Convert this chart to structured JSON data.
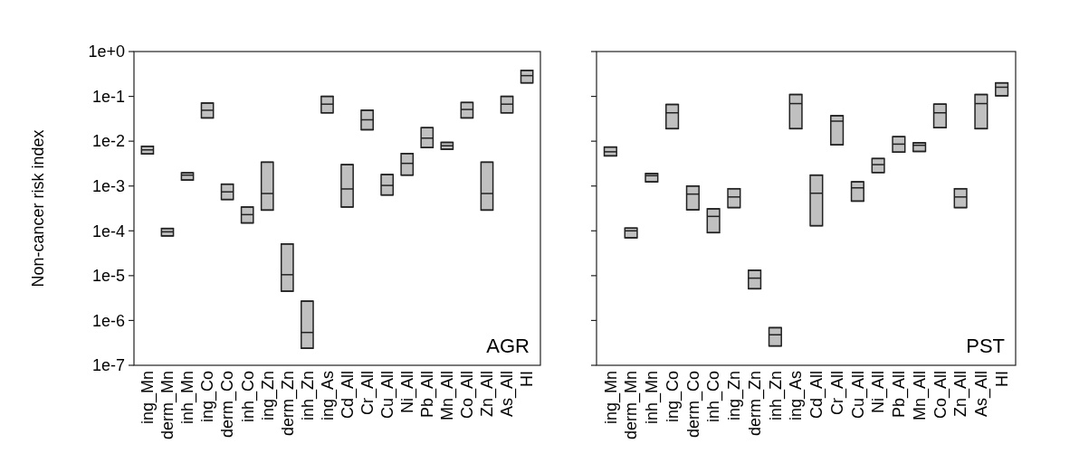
{
  "chart_data": [
    {
      "type": "box",
      "ylabel": "Non-cancer risk index",
      "log": true,
      "ylim": [
        1e-07,
        1
      ],
      "yticks": [
        {
          "value": 1,
          "label": "1e+0"
        },
        {
          "value": 0.1,
          "label": "1e-1"
        },
        {
          "value": 0.01,
          "label": "1e-2"
        },
        {
          "value": 0.001,
          "label": "1e-3"
        },
        {
          "value": 0.0001,
          "label": "1e-4"
        },
        {
          "value": 1e-05,
          "label": "1e-5"
        },
        {
          "value": 1e-06,
          "label": "1e-6"
        },
        {
          "value": 1e-07,
          "label": "1e-7"
        }
      ],
      "color": "#c0c0c0",
      "annotations": [
        "AGR"
      ],
      "categories": [
        "ing_Mn",
        "derm_Mn",
        "inh_Mn",
        "ing_Co",
        "derm_Co",
        "inh_Co",
        "ing_Zn",
        "derm_Zn",
        "inh_Zn",
        "ing_As",
        "Cd_All",
        "Cr_All",
        "Cu_All",
        "Ni_All",
        "Pb_All",
        "Mn_All",
        "Co_All",
        "Zn_All",
        "As_All",
        "HI"
      ],
      "boxes": [
        {
          "low": 0.0052,
          "q1": 0.0052,
          "median": 0.0064,
          "q3": 0.0077,
          "high": 0.0077
        },
        {
          "low": 7.7e-05,
          "q1": 7.7e-05,
          "median": 9.5e-05,
          "q3": 0.000113,
          "high": 0.000113
        },
        {
          "low": 0.00136,
          "q1": 0.00136,
          "median": 0.00175,
          "q3": 0.00197,
          "high": 0.00197
        },
        {
          "low": 0.033,
          "q1": 0.033,
          "median": 0.049,
          "q3": 0.071,
          "high": 0.071
        },
        {
          "low": 0.0005,
          "q1": 0.0005,
          "median": 0.00074,
          "q3": 0.0011,
          "high": 0.0011
        },
        {
          "low": 0.00015,
          "q1": 0.00015,
          "median": 0.00023,
          "q3": 0.00034,
          "high": 0.00034
        },
        {
          "low": 0.00029,
          "q1": 0.00029,
          "median": 0.00068,
          "q3": 0.0034,
          "high": 0.0034
        },
        {
          "low": 4.5e-06,
          "q1": 4.5e-06,
          "median": 1.05e-05,
          "q3": 5.1e-05,
          "high": 5.1e-05
        },
        {
          "low": 2.4e-07,
          "q1": 2.4e-07,
          "median": 5.4e-07,
          "q3": 2.7e-06,
          "high": 2.7e-06
        },
        {
          "low": 0.043,
          "q1": 0.043,
          "median": 0.067,
          "q3": 0.1,
          "high": 0.1
        },
        {
          "low": 0.00034,
          "q1": 0.00034,
          "median": 0.00086,
          "q3": 0.003,
          "high": 0.003
        },
        {
          "low": 0.018,
          "q1": 0.018,
          "median": 0.03,
          "q3": 0.049,
          "high": 0.049
        },
        {
          "low": 0.00063,
          "q1": 0.00063,
          "median": 0.00103,
          "q3": 0.0018,
          "high": 0.0018
        },
        {
          "low": 0.00175,
          "q1": 0.00175,
          "median": 0.0032,
          "q3": 0.0053,
          "high": 0.0053
        },
        {
          "low": 0.0072,
          "q1": 0.0072,
          "median": 0.0117,
          "q3": 0.02,
          "high": 0.02
        },
        {
          "low": 0.0066,
          "q1": 0.0066,
          "median": 0.0079,
          "q3": 0.0094,
          "high": 0.0094
        },
        {
          "low": 0.033,
          "q1": 0.033,
          "median": 0.051,
          "q3": 0.073,
          "high": 0.073
        },
        {
          "low": 0.00029,
          "q1": 0.00029,
          "median": 0.00068,
          "q3": 0.0034,
          "high": 0.0034
        },
        {
          "low": 0.043,
          "q1": 0.043,
          "median": 0.067,
          "q3": 0.1,
          "high": 0.1
        },
        {
          "low": 0.2,
          "q1": 0.2,
          "median": 0.29,
          "q3": 0.38,
          "high": 0.38
        }
      ]
    },
    {
      "type": "box",
      "log": true,
      "tick_labels": "x",
      "ylim": [
        1e-07,
        1
      ],
      "yticks": [
        {
          "value": 1,
          "label": null
        },
        {
          "value": 0.1,
          "label": null
        },
        {
          "value": 0.01,
          "label": null
        },
        {
          "value": 0.001,
          "label": null
        },
        {
          "value": 0.0001,
          "label": null
        },
        {
          "value": 1e-05,
          "label": null
        },
        {
          "value": 1e-06,
          "label": null
        },
        {
          "value": 1e-07,
          "label": null
        }
      ],
      "color": "#c0c0c0",
      "annotations": [
        "PST"
      ],
      "categories": [
        "ing_Mn",
        "derm_Mn",
        "inh_Mn",
        "ing_Co",
        "derm_Co",
        "inh_Co",
        "ing_Zn",
        "derm_Zn",
        "inh_Zn",
        "ing_As",
        "Cd_All",
        "Cr_All",
        "Cu_All",
        "Ni_All",
        "Pb_All",
        "Mn_All",
        "Co_All",
        "Zn_All",
        "As_All",
        "HI"
      ],
      "boxes": [
        {
          "low": 0.0047,
          "q1": 0.0047,
          "median": 0.0058,
          "q3": 0.0074,
          "high": 0.0074
        },
        {
          "low": 7e-05,
          "q1": 7e-05,
          "median": 0.0001,
          "q3": 0.000115,
          "high": 0.000115
        },
        {
          "low": 0.00124,
          "q1": 0.00124,
          "median": 0.0017,
          "q3": 0.0019,
          "high": 0.0019
        },
        {
          "low": 0.019,
          "q1": 0.019,
          "median": 0.043,
          "q3": 0.066,
          "high": 0.066
        },
        {
          "low": 0.000295,
          "q1": 0.000295,
          "median": 0.00066,
          "q3": 0.001,
          "high": 0.001
        },
        {
          "low": 9.1e-05,
          "q1": 9.1e-05,
          "median": 0.00021,
          "q3": 0.00031,
          "high": 0.00031
        },
        {
          "low": 0.00033,
          "q1": 0.00033,
          "median": 0.00057,
          "q3": 0.00087,
          "high": 0.00087
        },
        {
          "low": 5.1e-06,
          "q1": 5.1e-06,
          "median": 8.8e-06,
          "q3": 1.32e-05,
          "high": 1.32e-05
        },
        {
          "low": 2.7e-07,
          "q1": 2.7e-07,
          "median": 4.8e-07,
          "q3": 6.9e-07,
          "high": 6.9e-07
        },
        {
          "low": 0.019,
          "q1": 0.019,
          "median": 0.069,
          "q3": 0.11,
          "high": 0.11
        },
        {
          "low": 0.00013,
          "q1": 0.00013,
          "median": 0.00069,
          "q3": 0.00175,
          "high": 0.00175
        },
        {
          "low": 0.0083,
          "q1": 0.0083,
          "median": 0.028,
          "q3": 0.037,
          "high": 0.037
        },
        {
          "low": 0.00046,
          "q1": 0.00046,
          "median": 0.00091,
          "q3": 0.00124,
          "high": 0.00124
        },
        {
          "low": 0.002,
          "q1": 0.002,
          "median": 0.003,
          "q3": 0.0041,
          "high": 0.0041
        },
        {
          "low": 0.0057,
          "q1": 0.0057,
          "median": 0.0086,
          "q3": 0.0126,
          "high": 0.0126
        },
        {
          "low": 0.0059,
          "q1": 0.0059,
          "median": 0.0081,
          "q3": 0.0092,
          "high": 0.0092
        },
        {
          "low": 0.02,
          "q1": 0.02,
          "median": 0.043,
          "q3": 0.067,
          "high": 0.067
        },
        {
          "low": 0.00033,
          "q1": 0.00033,
          "median": 0.00057,
          "q3": 0.00087,
          "high": 0.00087
        },
        {
          "low": 0.019,
          "q1": 0.019,
          "median": 0.069,
          "q3": 0.11,
          "high": 0.11
        },
        {
          "low": 0.103,
          "q1": 0.103,
          "median": 0.16,
          "q3": 0.2,
          "high": 0.2
        }
      ]
    }
  ]
}
